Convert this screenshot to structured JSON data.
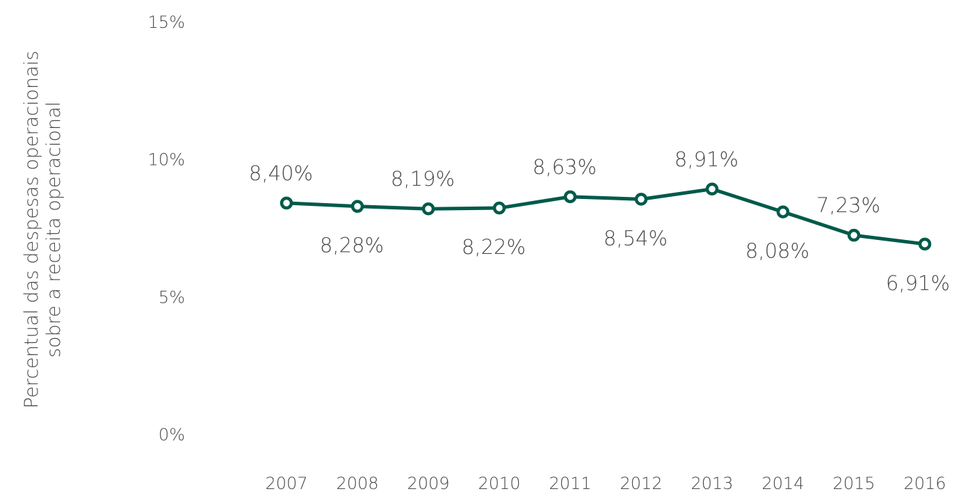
{
  "chart_data": {
    "type": "line",
    "categories": [
      "2007",
      "2008",
      "2009",
      "2010",
      "2011",
      "2012",
      "2013",
      "2014",
      "2015",
      "2016"
    ],
    "series": [
      {
        "values": [
          8.4,
          8.28,
          8.19,
          8.22,
          8.63,
          8.54,
          8.91,
          8.08,
          7.23,
          6.91
        ],
        "labels": [
          "8,40%",
          "8,28%",
          "8,19%",
          "8,22%",
          "8,63%",
          "8,54%",
          "8,91%",
          "8,08%",
          "7,23%",
          "6,91%"
        ],
        "color": "#005a4a"
      }
    ],
    "ylabel": [
      "Percentual das despesas operacionais",
      "sobre a receita operacional"
    ],
    "yticks": [
      "0%",
      "5%",
      "10%",
      "15%"
    ],
    "ytick_values": [
      0,
      5,
      10,
      15
    ],
    "ylim": [
      0,
      15
    ],
    "grid": false,
    "legend": "none",
    "data_label_positions": [
      "above",
      "below",
      "above",
      "below",
      "above",
      "below",
      "above",
      "below",
      "above",
      "below"
    ]
  }
}
